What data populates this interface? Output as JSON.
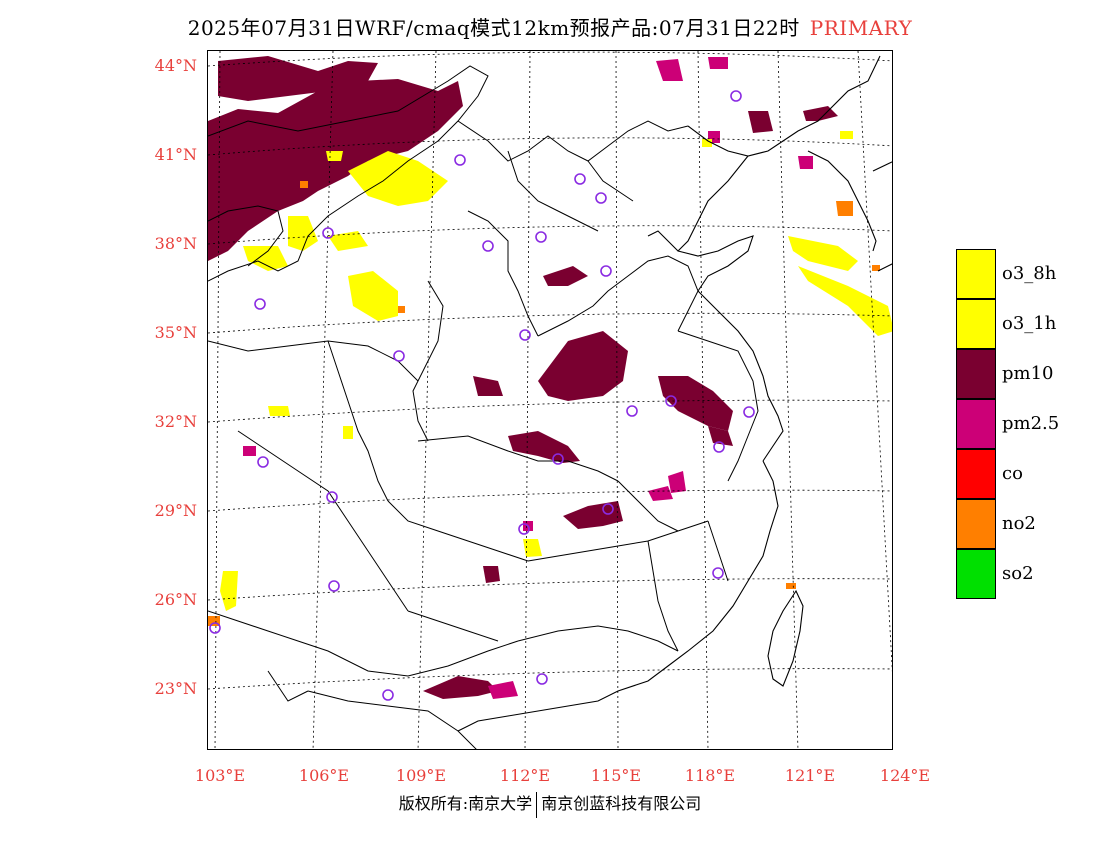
{
  "title": {
    "text": "2025年07月31日WRF/cmaq模式12km预报产品:07月31日22时",
    "tag": "PRIMARY"
  },
  "map": {
    "lat_labels": [
      "44°N",
      "41°N",
      "38°N",
      "35°N",
      "32°N",
      "29°N",
      "26°N",
      "23°N"
    ],
    "lon_labels": [
      "103°E",
      "106°E",
      "109°E",
      "112°E",
      "115°E",
      "118°E",
      "121°E",
      "124°E"
    ]
  },
  "legend": {
    "items": [
      {
        "label": "o3_8h",
        "color": "#ffff00"
      },
      {
        "label": "o3_1h",
        "color": "#ffff00"
      },
      {
        "label": "pm10",
        "color": "#7a0030"
      },
      {
        "label": "pm2.5",
        "color": "#cc0077"
      },
      {
        "label": "co",
        "color": "#ff0000"
      },
      {
        "label": "no2",
        "color": "#ff7f00"
      },
      {
        "label": "so2",
        "color": "#00e000"
      }
    ]
  },
  "colors": {
    "label_red": "#e8403c",
    "pm10": "#7a0030",
    "pm25": "#cc0077",
    "o3": "#ffff00",
    "no2": "#ff7f00",
    "station_ring": "#8a2be2"
  },
  "copyright": {
    "left": "版权所有:南京大学",
    "right": "南京创蓝科技有限公司"
  }
}
